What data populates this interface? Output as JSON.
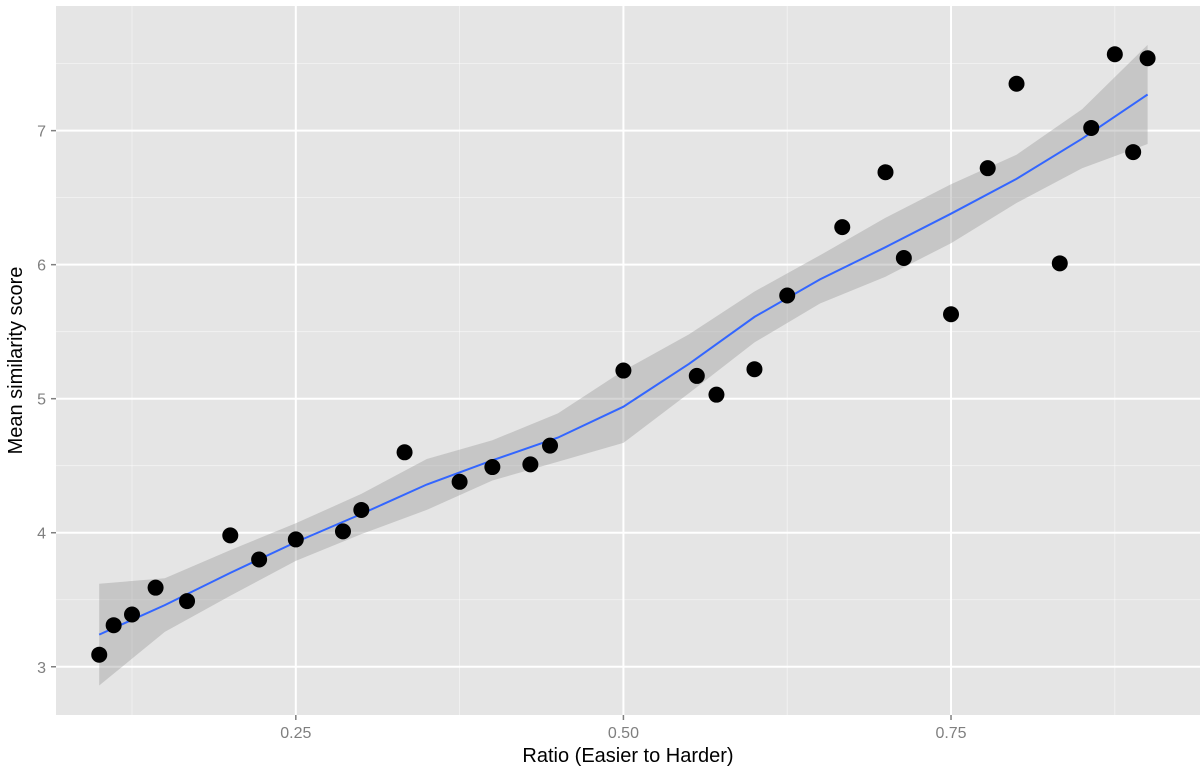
{
  "chart_data": {
    "type": "scatter",
    "title": "",
    "xlabel": "Ratio (Easier to Harder)",
    "ylabel": "Mean similarity score",
    "xlim": [
      0.067,
      0.94
    ],
    "ylim": [
      2.64,
      7.93
    ],
    "xticks": [
      0.25,
      0.5,
      0.75
    ],
    "xtick_labels": [
      "0.25",
      "0.50",
      "0.75"
    ],
    "yticks": [
      3,
      4,
      5,
      6,
      7
    ],
    "ytick_labels": [
      "3",
      "4",
      "5",
      "6",
      "7"
    ],
    "grid": true,
    "colors": {
      "panel_background": "#e5e5e5",
      "grid_line": "#ffffff",
      "point": "#000000",
      "smooth_line": "#3366ff",
      "confidence_band": "#999999"
    },
    "points": [
      {
        "x": 0.1,
        "y": 3.09
      },
      {
        "x": 0.111,
        "y": 3.31
      },
      {
        "x": 0.125,
        "y": 3.39
      },
      {
        "x": 0.143,
        "y": 3.59
      },
      {
        "x": 0.167,
        "y": 3.49
      },
      {
        "x": 0.2,
        "y": 3.98
      },
      {
        "x": 0.222,
        "y": 3.8
      },
      {
        "x": 0.25,
        "y": 3.95
      },
      {
        "x": 0.286,
        "y": 4.01
      },
      {
        "x": 0.3,
        "y": 4.17
      },
      {
        "x": 0.333,
        "y": 4.6
      },
      {
        "x": 0.375,
        "y": 4.38
      },
      {
        "x": 0.4,
        "y": 4.49
      },
      {
        "x": 0.429,
        "y": 4.51
      },
      {
        "x": 0.444,
        "y": 4.65
      },
      {
        "x": 0.5,
        "y": 5.21
      },
      {
        "x": 0.556,
        "y": 5.17
      },
      {
        "x": 0.571,
        "y": 5.03
      },
      {
        "x": 0.6,
        "y": 5.22
      },
      {
        "x": 0.625,
        "y": 5.77
      },
      {
        "x": 0.667,
        "y": 6.28
      },
      {
        "x": 0.7,
        "y": 6.69
      },
      {
        "x": 0.714,
        "y": 6.05
      },
      {
        "x": 0.75,
        "y": 5.63
      },
      {
        "x": 0.778,
        "y": 6.72
      },
      {
        "x": 0.8,
        "y": 7.35
      },
      {
        "x": 0.833,
        "y": 6.01
      },
      {
        "x": 0.857,
        "y": 7.02
      },
      {
        "x": 0.875,
        "y": 7.57
      },
      {
        "x": 0.889,
        "y": 6.84
      },
      {
        "x": 0.9,
        "y": 7.54
      }
    ],
    "smooth": {
      "method": "loess",
      "se": true,
      "x": [
        0.1,
        0.15,
        0.2,
        0.25,
        0.3,
        0.35,
        0.4,
        0.45,
        0.5,
        0.55,
        0.6,
        0.65,
        0.7,
        0.75,
        0.8,
        0.85,
        0.9
      ],
      "y": [
        3.24,
        3.46,
        3.7,
        3.93,
        4.14,
        4.36,
        4.54,
        4.71,
        4.94,
        5.26,
        5.61,
        5.89,
        6.13,
        6.38,
        6.64,
        6.94,
        7.27
      ],
      "ymin": [
        2.86,
        3.26,
        3.53,
        3.79,
        3.99,
        4.17,
        4.39,
        4.53,
        4.67,
        5.04,
        5.42,
        5.71,
        5.91,
        6.16,
        6.46,
        6.72,
        6.9
      ],
      "ymax": [
        3.62,
        3.66,
        3.87,
        4.07,
        4.29,
        4.55,
        4.69,
        4.89,
        5.21,
        5.48,
        5.8,
        6.07,
        6.35,
        6.6,
        6.82,
        7.16,
        7.64
      ]
    }
  }
}
